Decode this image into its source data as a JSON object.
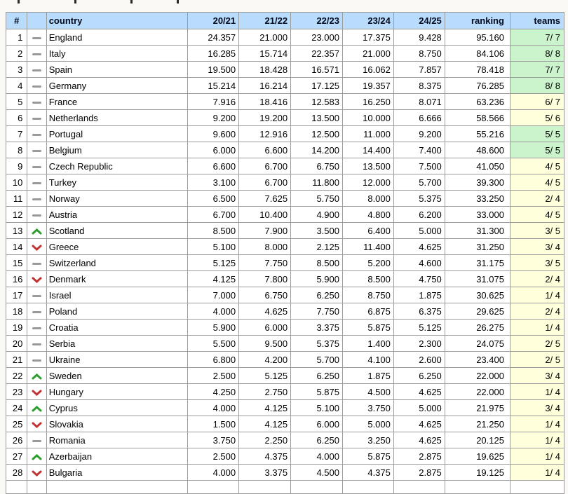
{
  "page": {
    "background": "#faf9f6",
    "note": "cropped descender fragments of a text line are visible above the table"
  },
  "table": {
    "columns": [
      "#",
      "",
      "country",
      "20/21",
      "21/22",
      "22/23",
      "23/24",
      "24/25",
      "ranking",
      "teams"
    ],
    "colors": {
      "header_bg": "#b9dcfc",
      "teams_green": "#ccf4cc",
      "teams_yellow": "#ffffdc",
      "border": "#9b9b9b",
      "up_arrow": "#2e9e2e",
      "down_arrow": "#c03434",
      "no_change_dash": "#9a9a9a"
    },
    "rows": [
      {
        "rank": 1,
        "movement": "same",
        "country": "England",
        "seasons": [
          "24.357",
          "21.000",
          "23.000",
          "17.375",
          "9.428"
        ],
        "ranking": "95.160",
        "teams": "7/ 7",
        "teams_color": "green"
      },
      {
        "rank": 2,
        "movement": "same",
        "country": "Italy",
        "seasons": [
          "16.285",
          "15.714",
          "22.357",
          "21.000",
          "8.750"
        ],
        "ranking": "84.106",
        "teams": "8/ 8",
        "teams_color": "green"
      },
      {
        "rank": 3,
        "movement": "same",
        "country": "Spain",
        "seasons": [
          "19.500",
          "18.428",
          "16.571",
          "16.062",
          "7.857"
        ],
        "ranking": "78.418",
        "teams": "7/ 7",
        "teams_color": "green"
      },
      {
        "rank": 4,
        "movement": "same",
        "country": "Germany",
        "seasons": [
          "15.214",
          "16.214",
          "17.125",
          "19.357",
          "8.375"
        ],
        "ranking": "76.285",
        "teams": "8/ 8",
        "teams_color": "green"
      },
      {
        "rank": 5,
        "movement": "same",
        "country": "France",
        "seasons": [
          "7.916",
          "18.416",
          "12.583",
          "16.250",
          "8.071"
        ],
        "ranking": "63.236",
        "teams": "6/ 7",
        "teams_color": "yellow"
      },
      {
        "rank": 6,
        "movement": "same",
        "country": "Netherlands",
        "seasons": [
          "9.200",
          "19.200",
          "13.500",
          "10.000",
          "6.666"
        ],
        "ranking": "58.566",
        "teams": "5/ 6",
        "teams_color": "yellow"
      },
      {
        "rank": 7,
        "movement": "same",
        "country": "Portugal",
        "seasons": [
          "9.600",
          "12.916",
          "12.500",
          "11.000",
          "9.200"
        ],
        "ranking": "55.216",
        "teams": "5/ 5",
        "teams_color": "green"
      },
      {
        "rank": 8,
        "movement": "same",
        "country": "Belgium",
        "seasons": [
          "6.000",
          "6.600",
          "14.200",
          "14.400",
          "7.400"
        ],
        "ranking": "48.600",
        "teams": "5/ 5",
        "teams_color": "green"
      },
      {
        "rank": 9,
        "movement": "same",
        "country": "Czech Republic",
        "seasons": [
          "6.600",
          "6.700",
          "6.750",
          "13.500",
          "7.500"
        ],
        "ranking": "41.050",
        "teams": "4/ 5",
        "teams_color": "yellow"
      },
      {
        "rank": 10,
        "movement": "same",
        "country": "Turkey",
        "seasons": [
          "3.100",
          "6.700",
          "11.800",
          "12.000",
          "5.700"
        ],
        "ranking": "39.300",
        "teams": "4/ 5",
        "teams_color": "yellow"
      },
      {
        "rank": 11,
        "movement": "same",
        "country": "Norway",
        "seasons": [
          "6.500",
          "7.625",
          "5.750",
          "8.000",
          "5.375"
        ],
        "ranking": "33.250",
        "teams": "2/ 4",
        "teams_color": "yellow"
      },
      {
        "rank": 12,
        "movement": "same",
        "country": "Austria",
        "seasons": [
          "6.700",
          "10.400",
          "4.900",
          "4.800",
          "6.200"
        ],
        "ranking": "33.000",
        "teams": "4/ 5",
        "teams_color": "yellow"
      },
      {
        "rank": 13,
        "movement": "up",
        "country": "Scotland",
        "seasons": [
          "8.500",
          "7.900",
          "3.500",
          "6.400",
          "5.000"
        ],
        "ranking": "31.300",
        "teams": "3/ 5",
        "teams_color": "yellow"
      },
      {
        "rank": 14,
        "movement": "down",
        "country": "Greece",
        "seasons": [
          "5.100",
          "8.000",
          "2.125",
          "11.400",
          "4.625"
        ],
        "ranking": "31.250",
        "teams": "3/ 4",
        "teams_color": "yellow"
      },
      {
        "rank": 15,
        "movement": "same",
        "country": "Switzerland",
        "seasons": [
          "5.125",
          "7.750",
          "8.500",
          "5.200",
          "4.600"
        ],
        "ranking": "31.175",
        "teams": "3/ 5",
        "teams_color": "yellow"
      },
      {
        "rank": 16,
        "movement": "down",
        "country": "Denmark",
        "seasons": [
          "4.125",
          "7.800",
          "5.900",
          "8.500",
          "4.750"
        ],
        "ranking": "31.075",
        "teams": "2/ 4",
        "teams_color": "yellow"
      },
      {
        "rank": 17,
        "movement": "same",
        "country": "Israel",
        "seasons": [
          "7.000",
          "6.750",
          "6.250",
          "8.750",
          "1.875"
        ],
        "ranking": "30.625",
        "teams": "1/ 4",
        "teams_color": "yellow"
      },
      {
        "rank": 18,
        "movement": "same",
        "country": "Poland",
        "seasons": [
          "4.000",
          "4.625",
          "7.750",
          "6.875",
          "6.375"
        ],
        "ranking": "29.625",
        "teams": "2/ 4",
        "teams_color": "yellow"
      },
      {
        "rank": 19,
        "movement": "same",
        "country": "Croatia",
        "seasons": [
          "5.900",
          "6.000",
          "3.375",
          "5.875",
          "5.125"
        ],
        "ranking": "26.275",
        "teams": "1/ 4",
        "teams_color": "yellow"
      },
      {
        "rank": 20,
        "movement": "same",
        "country": "Serbia",
        "seasons": [
          "5.500",
          "9.500",
          "5.375",
          "1.400",
          "2.300"
        ],
        "ranking": "24.075",
        "teams": "2/ 5",
        "teams_color": "yellow"
      },
      {
        "rank": 21,
        "movement": "same",
        "country": "Ukraine",
        "seasons": [
          "6.800",
          "4.200",
          "5.700",
          "4.100",
          "2.600"
        ],
        "ranking": "23.400",
        "teams": "2/ 5",
        "teams_color": "yellow"
      },
      {
        "rank": 22,
        "movement": "up",
        "country": "Sweden",
        "seasons": [
          "2.500",
          "5.125",
          "6.250",
          "1.875",
          "6.250"
        ],
        "ranking": "22.000",
        "teams": "3/ 4",
        "teams_color": "yellow"
      },
      {
        "rank": 23,
        "movement": "down",
        "country": "Hungary",
        "seasons": [
          "4.250",
          "2.750",
          "5.875",
          "4.500",
          "4.625"
        ],
        "ranking": "22.000",
        "teams": "1/ 4",
        "teams_color": "yellow"
      },
      {
        "rank": 24,
        "movement": "up",
        "country": "Cyprus",
        "seasons": [
          "4.000",
          "4.125",
          "5.100",
          "3.750",
          "5.000"
        ],
        "ranking": "21.975",
        "teams": "3/ 4",
        "teams_color": "yellow"
      },
      {
        "rank": 25,
        "movement": "down",
        "country": "Slovakia",
        "seasons": [
          "1.500",
          "4.125",
          "6.000",
          "5.000",
          "4.625"
        ],
        "ranking": "21.250",
        "teams": "1/ 4",
        "teams_color": "yellow"
      },
      {
        "rank": 26,
        "movement": "same",
        "country": "Romania",
        "seasons": [
          "3.750",
          "2.250",
          "6.250",
          "3.250",
          "4.625"
        ],
        "ranking": "20.125",
        "teams": "1/ 4",
        "teams_color": "yellow"
      },
      {
        "rank": 27,
        "movement": "up",
        "country": "Azerbaijan",
        "seasons": [
          "2.500",
          "4.375",
          "4.000",
          "5.875",
          "2.875"
        ],
        "ranking": "19.625",
        "teams": "1/ 4",
        "teams_color": "yellow"
      },
      {
        "rank": 28,
        "movement": "down",
        "country": "Bulgaria",
        "seasons": [
          "4.000",
          "3.375",
          "4.500",
          "4.375",
          "2.875"
        ],
        "ranking": "19.125",
        "teams": "1/ 4",
        "teams_color": "yellow"
      }
    ]
  }
}
